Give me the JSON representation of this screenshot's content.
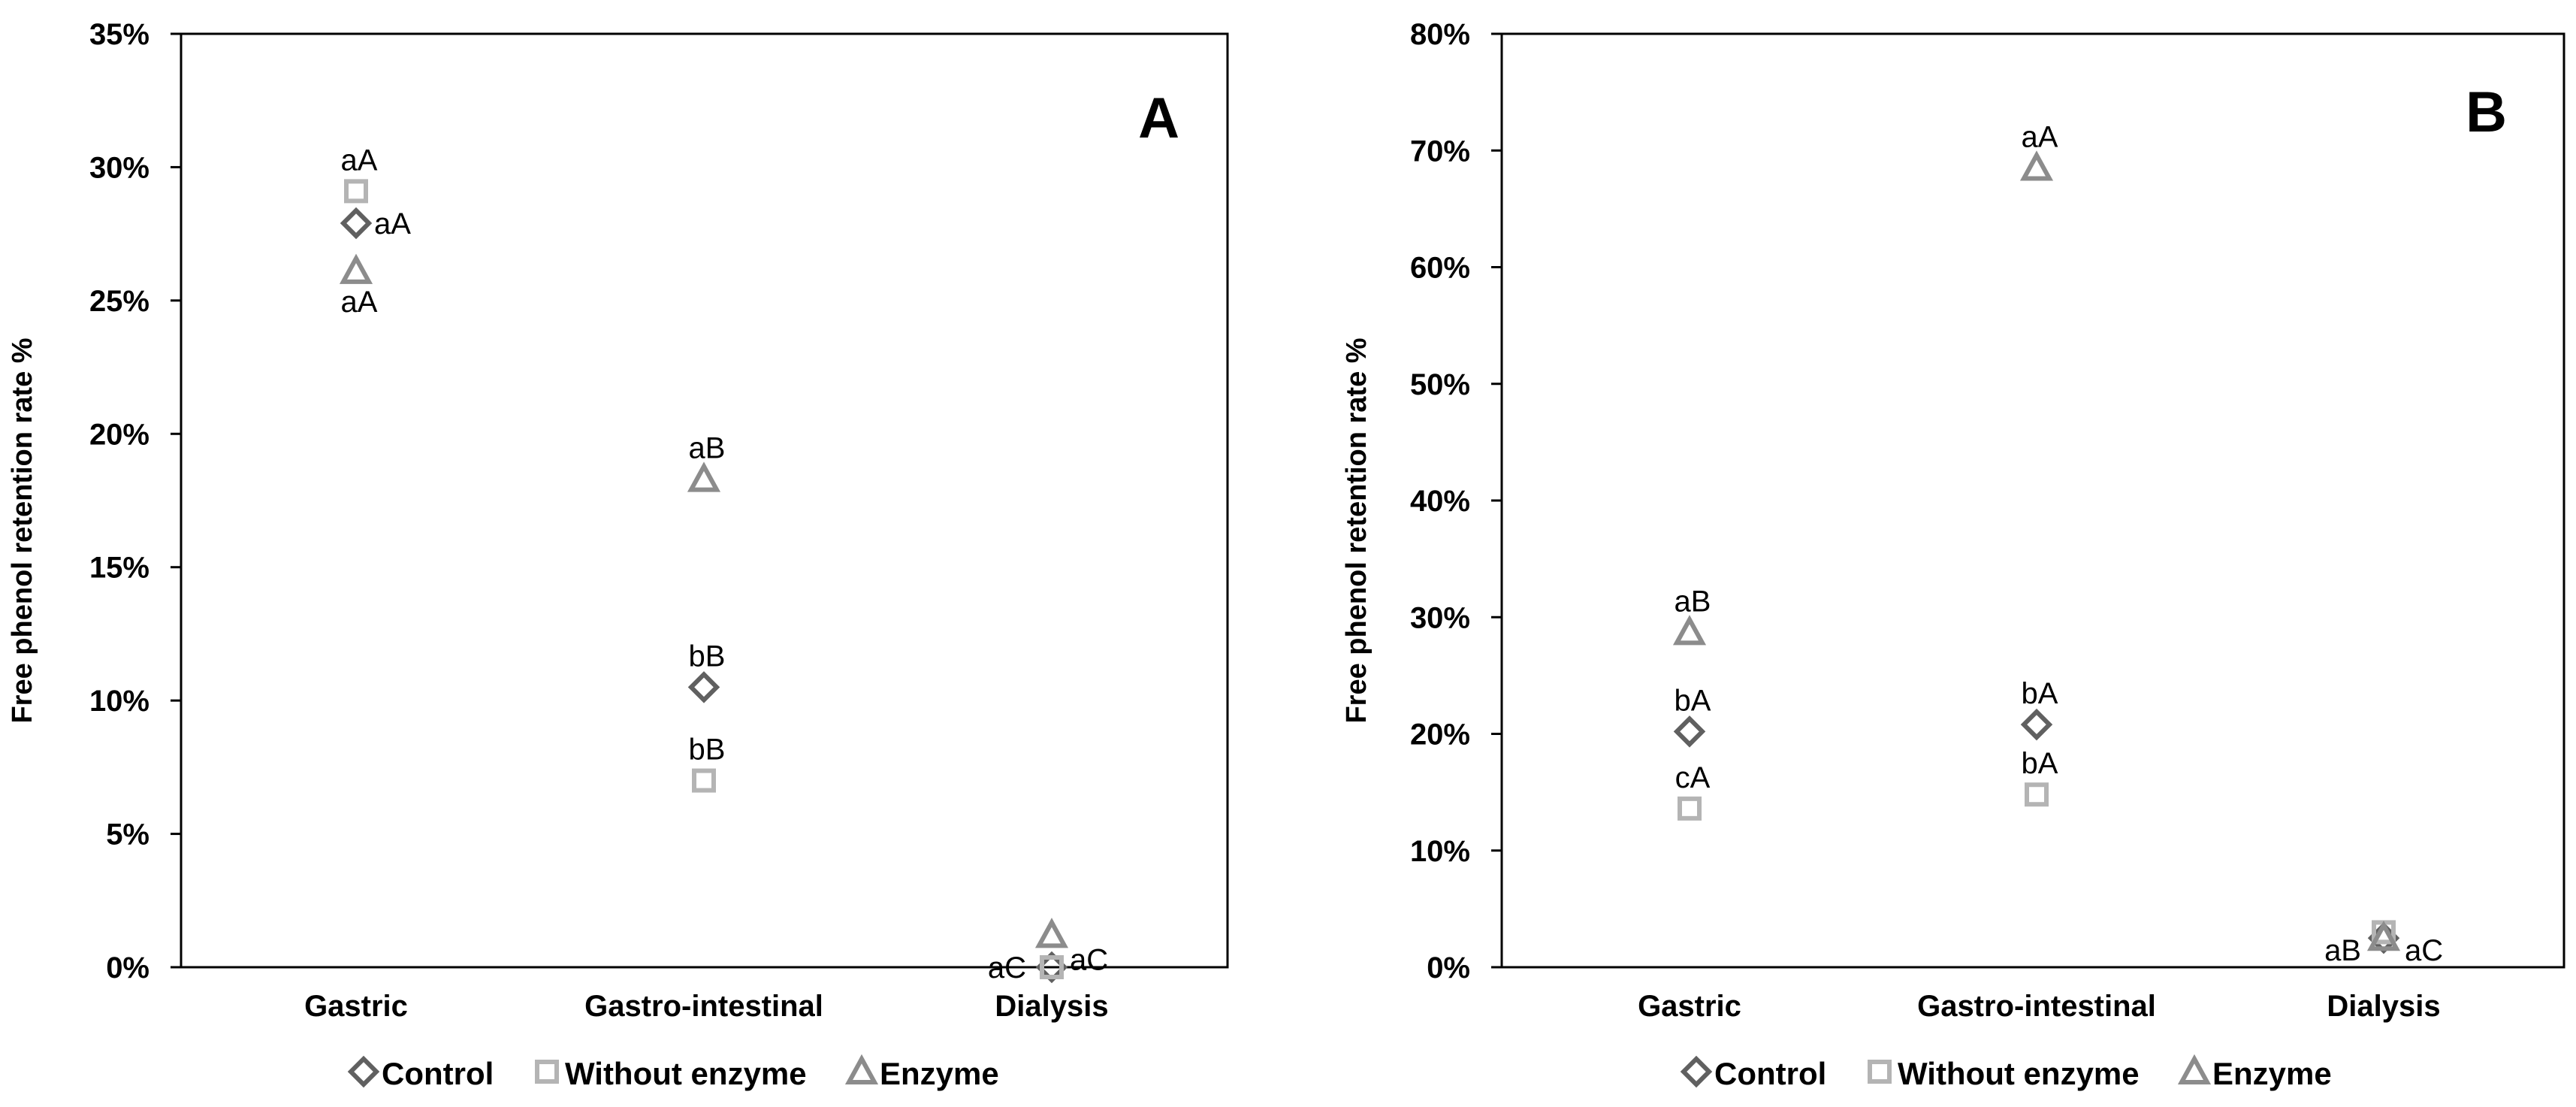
{
  "chart_data": [
    {
      "type": "scatter",
      "panel_label": "A",
      "ylabel": "Free phenol retention rate %",
      "xlabel": "",
      "categories": [
        "Gastric",
        "Gastro-intestinal",
        "Dialysis"
      ],
      "ylim": [
        0,
        0.35
      ],
      "yticks": [
        0,
        0.05,
        0.1,
        0.15,
        0.2,
        0.25,
        0.3,
        0.35
      ],
      "ytick_labels": [
        "0%",
        "5%",
        "10%",
        "15%",
        "20%",
        "25%",
        "30%",
        "35%"
      ],
      "series": [
        {
          "name": "Control",
          "marker": "diamond",
          "color": "#606060",
          "values": [
            0.279,
            0.105,
            0.0
          ],
          "labels": [
            "aA",
            "bB",
            "aC"
          ]
        },
        {
          "name": "Without enzyme",
          "marker": "square",
          "color": "#B4B4B4",
          "values": [
            0.291,
            0.07,
            0.0
          ],
          "labels": [
            "aA",
            "bB",
            "aC"
          ]
        },
        {
          "name": "Enzyme",
          "marker": "triangle",
          "color": "#8C8C8C",
          "values": [
            0.261,
            0.183,
            0.012
          ],
          "labels": [
            "aA",
            "aB",
            "aC"
          ]
        }
      ]
    },
    {
      "type": "scatter",
      "panel_label": "B",
      "ylabel": "Free phenol retention rate %",
      "xlabel": "",
      "categories": [
        "Gastric",
        "Gastro-intestinal",
        "Dialysis"
      ],
      "ylim": [
        0,
        0.8
      ],
      "yticks": [
        0,
        0.1,
        0.2,
        0.3,
        0.4,
        0.5,
        0.6,
        0.7,
        0.8
      ],
      "ytick_labels": [
        "0%",
        "10%",
        "20%",
        "30%",
        "40%",
        "50%",
        "60%",
        "70%",
        "80%"
      ],
      "series": [
        {
          "name": "Control",
          "marker": "diamond",
          "color": "#606060",
          "values": [
            0.202,
            0.208,
            0.025
          ],
          "labels": [
            "bA",
            "bA",
            "aB"
          ]
        },
        {
          "name": "Without enzyme",
          "marker": "square",
          "color": "#B4B4B4",
          "values": [
            0.136,
            0.148,
            0.03
          ],
          "labels": [
            "cA",
            "bA",
            "aB"
          ]
        },
        {
          "name": "Enzyme",
          "marker": "triangle",
          "color": "#8C8C8C",
          "values": [
            0.287,
            0.685,
            0.025
          ],
          "labels": [
            "aB",
            "aA",
            "aC"
          ]
        }
      ]
    }
  ]
}
